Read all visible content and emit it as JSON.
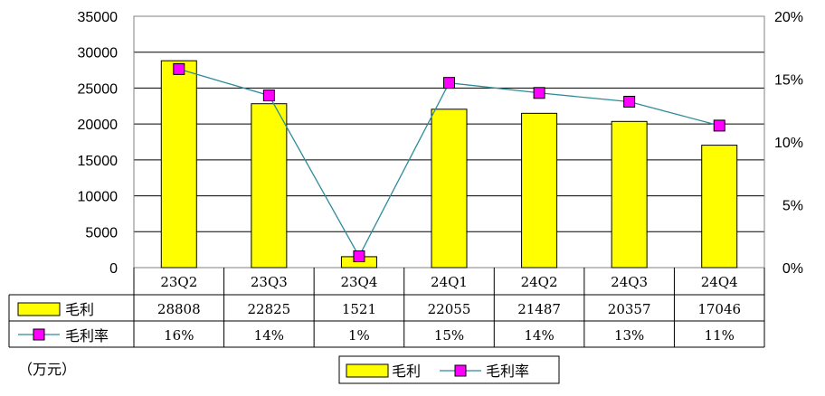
{
  "chart_data": {
    "type": "bar",
    "categories": [
      "23Q2",
      "23Q3",
      "23Q4",
      "24Q1",
      "24Q2",
      "24Q3",
      "24Q4"
    ],
    "series": [
      {
        "name": "毛利",
        "type": "bar",
        "axis": "left",
        "color": "#ffff00",
        "values": [
          28808,
          22825,
          1521,
          22055,
          21487,
          20357,
          17046
        ],
        "table_labels": [
          "28808",
          "22825",
          "1521",
          "22055",
          "21487",
          "20357",
          "17046"
        ]
      },
      {
        "name": "毛利率",
        "type": "line",
        "axis": "right",
        "color": "#ff00ff",
        "line_color": "#2e8b9a",
        "values": [
          15.8,
          13.7,
          0.9,
          14.7,
          13.9,
          13.2,
          11.3
        ],
        "table_labels": [
          "16%",
          "14%",
          "1%",
          "15%",
          "14%",
          "13%",
          "11%"
        ]
      }
    ],
    "y_left": {
      "ylim": [
        0,
        35000
      ],
      "ticks": [
        0,
        5000,
        10000,
        15000,
        20000,
        25000,
        30000,
        35000
      ],
      "tick_labels": [
        "0",
        "5000",
        "10000",
        "15000",
        "20000",
        "25000",
        "30000",
        "35000"
      ]
    },
    "y_right": {
      "ylim": [
        0,
        20
      ],
      "ticks": [
        0,
        5,
        10,
        15,
        20
      ],
      "tick_labels": [
        "0%",
        "5%",
        "10%",
        "15%",
        "20%"
      ]
    },
    "unit_note": "（万元）",
    "grid": true,
    "legend": "bottom-center",
    "data_table": true
  }
}
